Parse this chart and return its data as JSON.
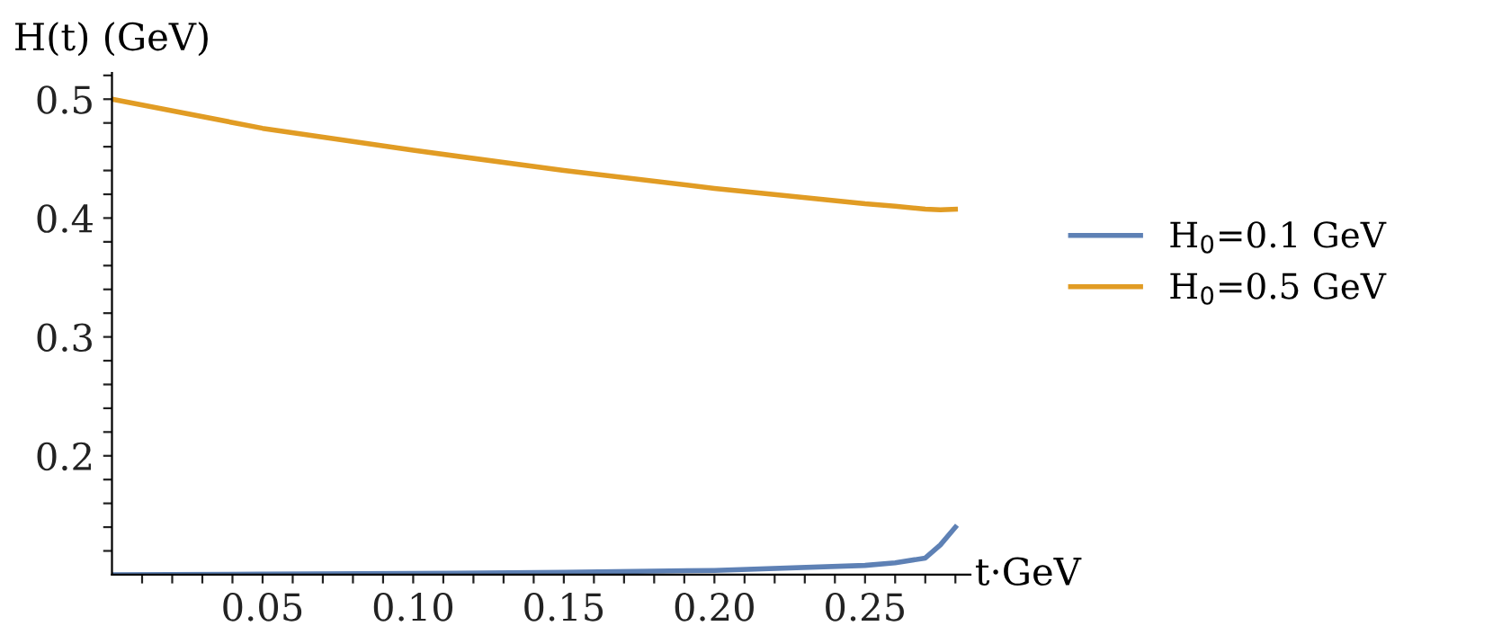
{
  "chart_data": {
    "type": "line",
    "xlabel": "t·GeV",
    "ylabel": "H(t) (GeV)",
    "x": [
      0,
      0.05,
      0.1,
      0.15,
      0.2,
      0.25,
      0.26,
      0.27,
      0.275,
      0.28
    ],
    "series": [
      {
        "name": "H$_{0}$=0.1 GeV",
        "color": "#5e81b5",
        "values": [
          0.1,
          0.1005,
          0.101,
          0.102,
          0.1036,
          0.1078,
          0.11,
          0.114,
          0.125,
          0.14
        ]
      },
      {
        "name": "H$_{0}$=0.5 GeV",
        "color": "#e19c24",
        "values": [
          0.5,
          0.4755,
          0.457,
          0.44,
          0.425,
          0.412,
          0.41,
          0.4075,
          0.407,
          0.4075
        ]
      }
    ],
    "xlim": [
      0,
      0.285
    ],
    "ylim": [
      0.1,
      0.522
    ],
    "xticks": [
      {
        "value": 0.01,
        "label": null
      },
      {
        "value": 0.02,
        "label": null
      },
      {
        "value": 0.03,
        "label": null
      },
      {
        "value": 0.04,
        "label": null
      },
      {
        "value": 0.05,
        "label": "0.05"
      },
      {
        "value": 0.06,
        "label": null
      },
      {
        "value": 0.07,
        "label": null
      },
      {
        "value": 0.08,
        "label": null
      },
      {
        "value": 0.09,
        "label": null
      },
      {
        "value": 0.1,
        "label": "0.10"
      },
      {
        "value": 0.11,
        "label": null
      },
      {
        "value": 0.12,
        "label": null
      },
      {
        "value": 0.13,
        "label": null
      },
      {
        "value": 0.14,
        "label": null
      },
      {
        "value": 0.15,
        "label": "0.15"
      },
      {
        "value": 0.16,
        "label": null
      },
      {
        "value": 0.17,
        "label": null
      },
      {
        "value": 0.18,
        "label": null
      },
      {
        "value": 0.19,
        "label": null
      },
      {
        "value": 0.2,
        "label": "0.20"
      },
      {
        "value": 0.21,
        "label": null
      },
      {
        "value": 0.22,
        "label": null
      },
      {
        "value": 0.23,
        "label": null
      },
      {
        "value": 0.24,
        "label": null
      },
      {
        "value": 0.25,
        "label": "0.25"
      },
      {
        "value": 0.26,
        "label": null
      },
      {
        "value": 0.27,
        "label": null
      },
      {
        "value": 0.28,
        "label": null
      }
    ],
    "yticks": [
      {
        "value": 0.12,
        "label": null
      },
      {
        "value": 0.14,
        "label": null
      },
      {
        "value": 0.16,
        "label": null
      },
      {
        "value": 0.18,
        "label": null
      },
      0.2,
      {
        "value": 0.22,
        "label": null
      },
      {
        "value": 0.24,
        "label": null
      },
      {
        "value": 0.26,
        "label": null
      },
      {
        "value": 0.28,
        "label": null
      },
      0.3,
      {
        "value": 0.32,
        "label": null
      },
      {
        "value": 0.34,
        "label": null
      },
      {
        "value": 0.36,
        "label": null
      },
      {
        "value": 0.38,
        "label": null
      },
      0.4,
      {
        "value": 0.42,
        "label": null
      },
      {
        "value": 0.44,
        "label": null
      },
      {
        "value": 0.46,
        "label": null
      },
      {
        "value": 0.48,
        "label": null
      },
      0.5,
      {
        "value": 0.52,
        "label": null
      }
    ],
    "grid": false,
    "legend": "right",
    "marker": "none",
    "line_style": "solid"
  }
}
